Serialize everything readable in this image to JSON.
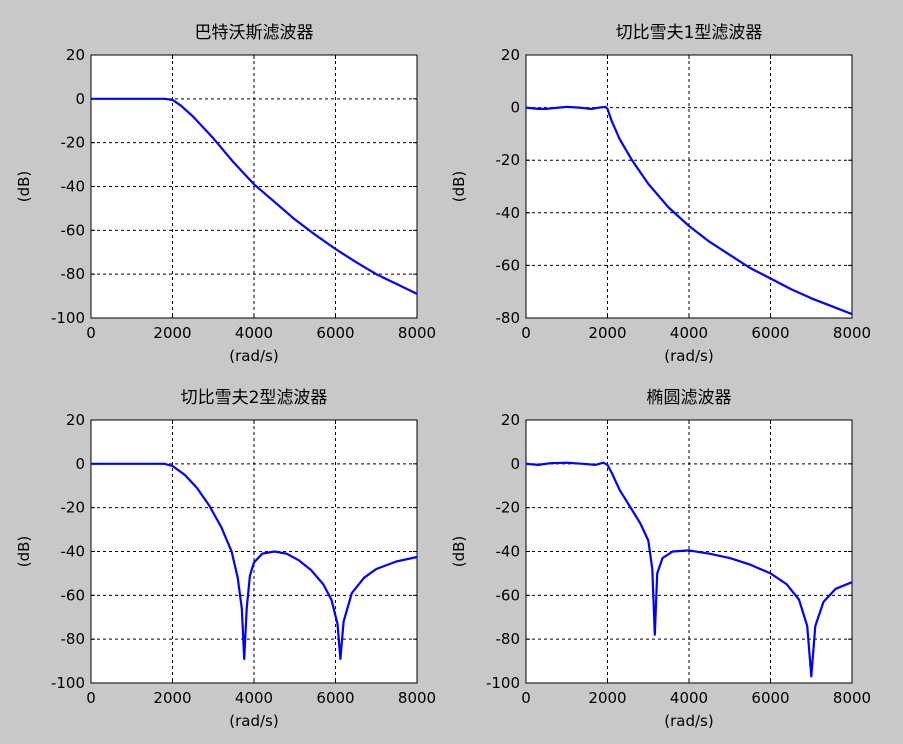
{
  "figure": {
    "background": "#c8c8c8",
    "line_color": "#0000ff"
  },
  "chart_data": [
    {
      "type": "line",
      "title": "巴特沃斯滤波器",
      "xlabel": "(rad/s)",
      "ylabel": "(dB)",
      "xlim": [
        0,
        8000
      ],
      "ylim": [
        -100,
        20
      ],
      "xticks": [
        "0",
        "2000",
        "4000",
        "6000",
        "8000"
      ],
      "yticks": [
        "20",
        "0",
        "-20",
        "-40",
        "-60",
        "-80",
        "-100"
      ],
      "grid": true,
      "series": [
        {
          "color": "#0000ff",
          "points": [
            [
              0,
              0
            ],
            [
              1000,
              0
            ],
            [
              1800,
              0
            ],
            [
              2000,
              -0.5
            ],
            [
              2200,
              -3
            ],
            [
              2500,
              -8
            ],
            [
              3000,
              -18
            ],
            [
              3500,
              -29
            ],
            [
              4000,
              -39
            ],
            [
              4500,
              -47
            ],
            [
              5000,
              -55
            ],
            [
              5500,
              -62
            ],
            [
              6000,
              -68.5
            ],
            [
              6500,
              -74.5
            ],
            [
              7000,
              -80
            ],
            [
              7500,
              -84.5
            ],
            [
              8000,
              -89
            ]
          ]
        }
      ]
    },
    {
      "type": "line",
      "title": "切比雪夫1型滤波器",
      "xlabel": "(rad/s)",
      "ylabel": "(dB)",
      "xlim": [
        0,
        8000
      ],
      "ylim": [
        -80,
        20
      ],
      "xticks": [
        "0",
        "2000",
        "4000",
        "6000",
        "8000"
      ],
      "yticks": [
        "20",
        "0",
        "-20",
        "-40",
        "-60",
        "-80"
      ],
      "grid": true,
      "series": [
        {
          "color": "#0000ff",
          "points": [
            [
              0,
              0
            ],
            [
              300,
              -0.5
            ],
            [
              500,
              -0.5
            ],
            [
              800,
              0
            ],
            [
              1000,
              0.3
            ],
            [
              1300,
              0
            ],
            [
              1600,
              -0.5
            ],
            [
              1800,
              0
            ],
            [
              1950,
              0.3
            ],
            [
              2000,
              -0.5
            ],
            [
              2100,
              -5
            ],
            [
              2300,
              -12
            ],
            [
              2600,
              -20
            ],
            [
              3000,
              -29
            ],
            [
              3500,
              -38
            ],
            [
              4000,
              -45
            ],
            [
              4500,
              -51
            ],
            [
              5000,
              -56
            ],
            [
              5500,
              -61
            ],
            [
              6000,
              -65
            ],
            [
              6500,
              -69
            ],
            [
              7000,
              -72.5
            ],
            [
              7500,
              -75.5
            ],
            [
              8000,
              -78.5
            ]
          ]
        }
      ]
    },
    {
      "type": "line",
      "title": "切比雪夫2型滤波器",
      "xlabel": "(rad/s)",
      "ylabel": "(dB)",
      "xlim": [
        0,
        8000
      ],
      "ylim": [
        -100,
        20
      ],
      "xticks": [
        "0",
        "2000",
        "4000",
        "6000",
        "8000"
      ],
      "yticks": [
        "20",
        "0",
        "-20",
        "-40",
        "-60",
        "-80",
        "-100"
      ],
      "grid": true,
      "series": [
        {
          "color": "#0000ff",
          "points": [
            [
              0,
              0
            ],
            [
              1000,
              0
            ],
            [
              1800,
              0
            ],
            [
              2000,
              -1
            ],
            [
              2300,
              -5
            ],
            [
              2600,
              -11
            ],
            [
              2900,
              -19
            ],
            [
              3200,
              -29
            ],
            [
              3450,
              -40
            ],
            [
              3600,
              -52
            ],
            [
              3700,
              -66
            ],
            [
              3760,
              -89
            ],
            [
              3820,
              -66
            ],
            [
              3900,
              -51
            ],
            [
              4000,
              -45
            ],
            [
              4200,
              -41
            ],
            [
              4500,
              -40
            ],
            [
              4800,
              -41
            ],
            [
              5100,
              -44
            ],
            [
              5400,
              -48.5
            ],
            [
              5700,
              -55
            ],
            [
              5900,
              -62
            ],
            [
              6050,
              -73
            ],
            [
              6120,
              -89
            ],
            [
              6200,
              -72
            ],
            [
              6400,
              -59
            ],
            [
              6700,
              -52
            ],
            [
              7000,
              -48
            ],
            [
              7500,
              -44.5
            ],
            [
              8000,
              -42.5
            ]
          ]
        }
      ]
    },
    {
      "type": "line",
      "title": "椭圆滤波器",
      "xlabel": "(rad/s)",
      "ylabel": "(dB)",
      "xlim": [
        0,
        8000
      ],
      "ylim": [
        -100,
        20
      ],
      "xticks": [
        "0",
        "2000",
        "4000",
        "6000",
        "8000"
      ],
      "yticks": [
        "20",
        "0",
        "-20",
        "-40",
        "-60",
        "-80",
        "-100"
      ],
      "grid": true,
      "series": [
        {
          "color": "#0000ff",
          "points": [
            [
              0,
              0
            ],
            [
              300,
              -0.5
            ],
            [
              600,
              0.3
            ],
            [
              1000,
              0.5
            ],
            [
              1400,
              0
            ],
            [
              1700,
              -0.5
            ],
            [
              1900,
              0.5
            ],
            [
              2000,
              -0.5
            ],
            [
              2100,
              -4
            ],
            [
              2300,
              -12
            ],
            [
              2600,
              -21
            ],
            [
              2800,
              -27
            ],
            [
              3000,
              -35
            ],
            [
              3100,
              -48
            ],
            [
              3160,
              -78
            ],
            [
              3220,
              -50
            ],
            [
              3350,
              -43
            ],
            [
              3600,
              -40
            ],
            [
              4000,
              -39.5
            ],
            [
              4500,
              -41
            ],
            [
              5000,
              -43
            ],
            [
              5500,
              -46
            ],
            [
              6000,
              -50
            ],
            [
              6400,
              -55
            ],
            [
              6700,
              -62
            ],
            [
              6900,
              -74
            ],
            [
              7000,
              -97
            ],
            [
              7100,
              -74
            ],
            [
              7300,
              -63
            ],
            [
              7600,
              -57
            ],
            [
              8000,
              -54
            ]
          ]
        }
      ]
    }
  ]
}
